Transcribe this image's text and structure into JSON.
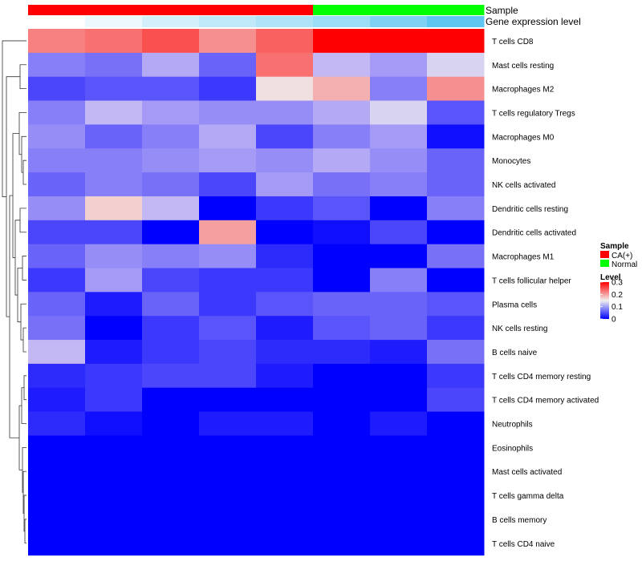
{
  "chart_data": {
    "type": "heatmap",
    "annotation_track_labels": [
      "Sample",
      "Gene expression level"
    ],
    "columns": [
      {
        "sample": "CA(+)",
        "expression": 0.0
      },
      {
        "sample": "CA(+)",
        "expression": 0.12
      },
      {
        "sample": "CA(+)",
        "expression": 0.28
      },
      {
        "sample": "CA(+)",
        "expression": 0.4
      },
      {
        "sample": "CA(+)",
        "expression": 0.5
      },
      {
        "sample": "Normal",
        "expression": 0.62
      },
      {
        "sample": "Normal",
        "expression": 0.8
      },
      {
        "sample": "Normal",
        "expression": 1.0
      }
    ],
    "rows": [
      "T cells CD8",
      "Mast cells resting",
      "Macrophages M2",
      "T cells regulatory  Tregs",
      "Macrophages M0",
      "Monocytes",
      "NK cells activated",
      "Dendritic cells resting",
      "Dendritic cells activated",
      "Macrophages M1",
      "T cells follicular helper",
      "Plasma cells",
      "NK cells resting",
      "B cells naive",
      "T cells CD4 memory resting",
      "T cells CD4 memory activated",
      "Neutrophils",
      "Eosinophils",
      "Mast cells activated",
      "T cells gamma delta",
      "B cells memory",
      "T cells CD4 naive"
    ],
    "values": [
      [
        0.22,
        0.23,
        0.25,
        0.21,
        0.24,
        0.3,
        0.3,
        0.3
      ],
      [
        0.09,
        0.08,
        0.12,
        0.07,
        0.23,
        0.13,
        0.11,
        0.14
      ],
      [
        0.05,
        0.06,
        0.06,
        0.04,
        0.16,
        0.19,
        0.09,
        0.21
      ],
      [
        0.09,
        0.13,
        0.11,
        0.1,
        0.1,
        0.12,
        0.14,
        0.06
      ],
      [
        0.1,
        0.07,
        0.09,
        0.12,
        0.05,
        0.09,
        0.11,
        0.01
      ],
      [
        0.09,
        0.09,
        0.1,
        0.11,
        0.1,
        0.12,
        0.1,
        0.07
      ],
      [
        0.07,
        0.09,
        0.08,
        0.05,
        0.11,
        0.08,
        0.09,
        0.07
      ],
      [
        0.1,
        0.17,
        0.13,
        0.0,
        0.04,
        0.06,
        0.0,
        0.09
      ],
      [
        0.05,
        0.05,
        0.0,
        0.2,
        0.0,
        0.01,
        0.05,
        0.0
      ],
      [
        0.07,
        0.1,
        0.09,
        0.1,
        0.03,
        0.0,
        0.0,
        0.08
      ],
      [
        0.04,
        0.11,
        0.05,
        0.04,
        0.04,
        0.0,
        0.09,
        0.0
      ],
      [
        0.07,
        0.02,
        0.07,
        0.04,
        0.06,
        0.07,
        0.07,
        0.06
      ],
      [
        0.08,
        0.0,
        0.04,
        0.06,
        0.02,
        0.06,
        0.07,
        0.04
      ],
      [
        0.13,
        0.02,
        0.04,
        0.05,
        0.03,
        0.03,
        0.02,
        0.08
      ],
      [
        0.03,
        0.04,
        0.05,
        0.05,
        0.02,
        0.0,
        0.0,
        0.04
      ],
      [
        0.02,
        0.04,
        0.0,
        0.0,
        0.0,
        0.0,
        0.0,
        0.05
      ],
      [
        0.03,
        0.01,
        0.0,
        0.02,
        0.02,
        0.0,
        0.02,
        0.0
      ],
      [
        0.0,
        0.0,
        0.0,
        0.0,
        0.0,
        0.0,
        0.0,
        0.0
      ],
      [
        0.0,
        0.0,
        0.0,
        0.0,
        0.0,
        0.0,
        0.0,
        0.0
      ],
      [
        0.0,
        0.0,
        0.0,
        0.0,
        0.0,
        0.0,
        0.0,
        0.0
      ],
      [
        0.0,
        0.0,
        0.0,
        0.0,
        0.0,
        0.0,
        0.0,
        0.0
      ],
      [
        0.0,
        0.0,
        0.0,
        0.0,
        0.0,
        0.0,
        0.0,
        0.0
      ]
    ],
    "color_scale": {
      "low": "#0000ff",
      "mid": "#f0f0f0",
      "high": "#ff0000",
      "min": 0,
      "mid_value": 0.15,
      "max": 0.3
    },
    "expression_colors": {
      "low": "#ffffff",
      "high": "#5ec6f0"
    },
    "legend": {
      "sample_title": "Sample",
      "sample_items": [
        {
          "label": "CA(+)",
          "color": "#ff0000"
        },
        {
          "label": "Normal",
          "color": "#00ff00"
        }
      ],
      "level_title": "Level",
      "level_ticks": [
        "0.3",
        "0.2",
        "0.1",
        "0"
      ],
      "level_tick_values": [
        0.3,
        0.2,
        0.1,
        0
      ]
    }
  }
}
